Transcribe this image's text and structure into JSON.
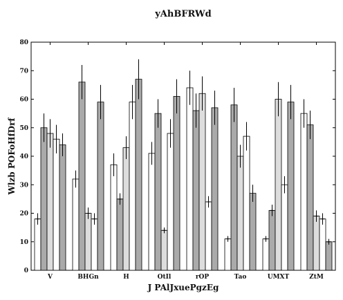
{
  "chart_data": {
    "type": "bar",
    "title": "yAhBFRWd",
    "xlabel": "J PAlJxuePgzEg",
    "ylabel": "Wlzb POFoHfDrf",
    "ylim": [
      0,
      80
    ],
    "yticks": [
      0,
      10,
      20,
      30,
      40,
      50,
      60,
      70,
      80
    ],
    "grid": false,
    "categories": [
      "V",
      "BHGn",
      "H",
      "OtIl",
      "rOP",
      "Tao",
      "UMXT",
      "ZtM"
    ],
    "series": [
      {
        "color": "#ffffff",
        "values": [
          18,
          32,
          37,
          41,
          64,
          11,
          11,
          55
        ],
        "errors": [
          2,
          3,
          4,
          4,
          6,
          1,
          1,
          5
        ]
      },
      {
        "color": "#aaaaaa",
        "values": [
          50,
          66,
          25,
          55,
          56,
          58,
          21,
          51
        ],
        "errors": [
          5,
          6,
          2,
          5,
          6,
          6,
          2,
          5
        ]
      },
      {
        "color": "#dddddd",
        "values": [
          48,
          20,
          43,
          14,
          62,
          40,
          60,
          19
        ],
        "errors": [
          5,
          2,
          4,
          1,
          6,
          4,
          6,
          2
        ]
      },
      {
        "color": "#ffffff",
        "values": [
          46,
          18,
          59,
          48,
          24,
          47,
          30,
          18
        ],
        "errors": [
          5,
          2,
          6,
          5,
          2,
          5,
          3,
          2
        ]
      },
      {
        "color": "#aaaaaa",
        "values": [
          44,
          59,
          67,
          61,
          57,
          27,
          59,
          10
        ],
        "errors": [
          4,
          6,
          7,
          6,
          6,
          3,
          6,
          1
        ]
      }
    ]
  }
}
